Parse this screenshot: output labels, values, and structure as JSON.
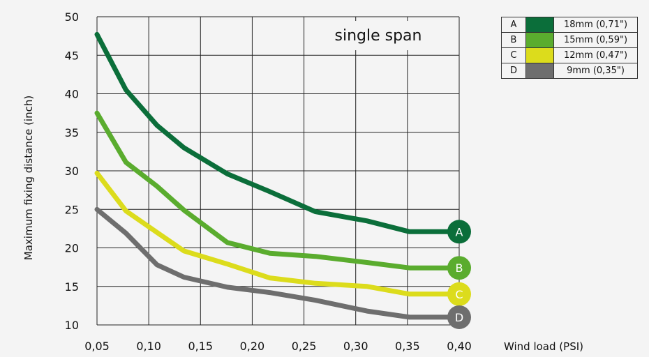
{
  "chart_data": {
    "type": "line",
    "title": "single span",
    "xlabel": "Wind load (PSI)",
    "ylabel": "Maximum fixing distance (inch)",
    "x": [
      0.05,
      0.1,
      0.15,
      0.2,
      0.25,
      0.3,
      0.35,
      0.4
    ],
    "xticks": [
      "0,05",
      "0,10",
      "0,15",
      "0,20",
      "0,25",
      "0,30",
      "0,35",
      "0,40"
    ],
    "yticks": [
      "10",
      "15",
      "20",
      "25",
      "30",
      "35",
      "40",
      "45",
      "50"
    ],
    "xlim": [
      0.05,
      0.4
    ],
    "ylim": [
      10,
      50
    ],
    "grid": true,
    "legend_position": "top-right",
    "series": [
      {
        "key": "A",
        "name": "18mm (0,71\")",
        "color": "#0b6e3a",
        "x": [
          0.05,
          0.078,
          0.108,
          0.134,
          0.176,
          0.217,
          0.261,
          0.311,
          0.352,
          0.4
        ],
        "y": [
          47.7,
          40.5,
          35.9,
          33.0,
          29.6,
          27.3,
          24.7,
          23.5,
          22.1,
          22.1
        ]
      },
      {
        "key": "B",
        "name": "15mm (0,59\")",
        "color": "#5aac2e",
        "x": [
          0.05,
          0.078,
          0.108,
          0.134,
          0.176,
          0.217,
          0.261,
          0.311,
          0.352,
          0.4
        ],
        "y": [
          37.5,
          31.1,
          28.0,
          24.9,
          20.7,
          19.3,
          18.9,
          18.1,
          17.4,
          17.4
        ]
      },
      {
        "key": "C",
        "name": "12mm (0,47\")",
        "color": "#dcdc1c",
        "x": [
          0.05,
          0.078,
          0.108,
          0.134,
          0.176,
          0.217,
          0.261,
          0.311,
          0.352,
          0.4
        ],
        "y": [
          29.7,
          24.8,
          22.0,
          19.6,
          17.9,
          16.1,
          15.4,
          15.0,
          14.0,
          14.0
        ]
      },
      {
        "key": "D",
        "name": "9mm (0,35\")",
        "color": "#6e6e6e",
        "x": [
          0.05,
          0.078,
          0.108,
          0.134,
          0.176,
          0.217,
          0.261,
          0.311,
          0.352,
          0.4
        ],
        "y": [
          25.0,
          21.9,
          17.8,
          16.2,
          14.9,
          14.2,
          13.2,
          11.8,
          11.0,
          11.0
        ]
      }
    ]
  }
}
